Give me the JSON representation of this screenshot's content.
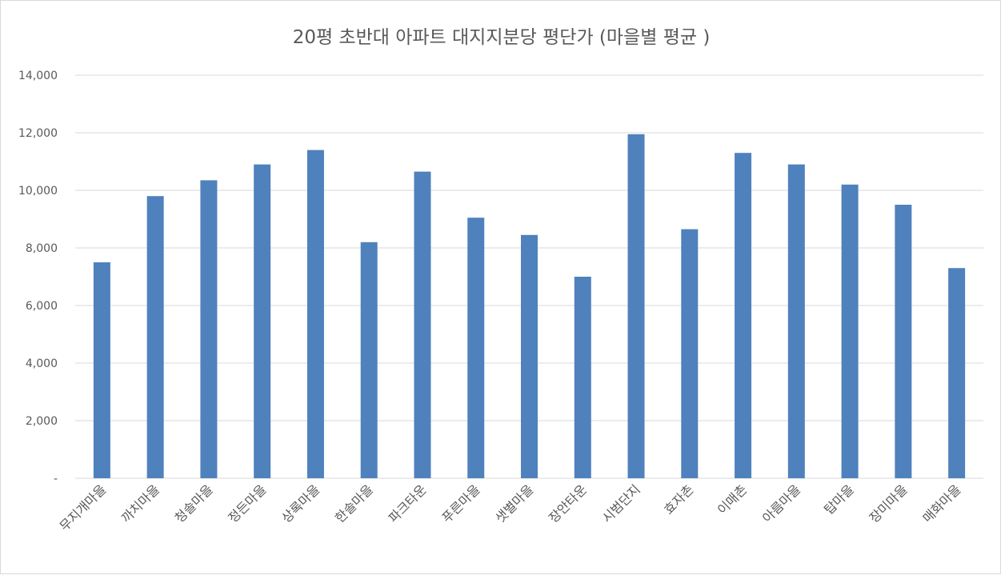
{
  "chart_data": {
    "type": "bar",
    "title": "20평 초반대 아파트 대지지분당 평단가 (마을별 평균 )",
    "xlabel": "",
    "ylabel": "",
    "ylim": [
      0,
      14000
    ],
    "yticks": [
      0,
      2000,
      4000,
      6000,
      8000,
      10000,
      12000,
      14000
    ],
    "ytick_labels": [
      "-",
      "2,000",
      "4,000",
      "6,000",
      "8,000",
      "10,000",
      "12,000",
      "14,000"
    ],
    "categories": [
      "무지개마을",
      "까치마을",
      "청솔마을",
      "정든마을",
      "상록마을",
      "한솔마을",
      "파크타운",
      "푸른마을",
      "샛별마을",
      "장안타운",
      "시범단지",
      "효자촌",
      "이매촌",
      "아름마을",
      "탑마을",
      "장미마을",
      "매화마을"
    ],
    "values": [
      7500,
      9800,
      10350,
      10900,
      11400,
      8200,
      10650,
      9050,
      8450,
      7000,
      11950,
      8650,
      11300,
      10900,
      10200,
      9500,
      7300
    ],
    "bar_color": "#4f81bd",
    "grid": true,
    "legend": "none"
  }
}
